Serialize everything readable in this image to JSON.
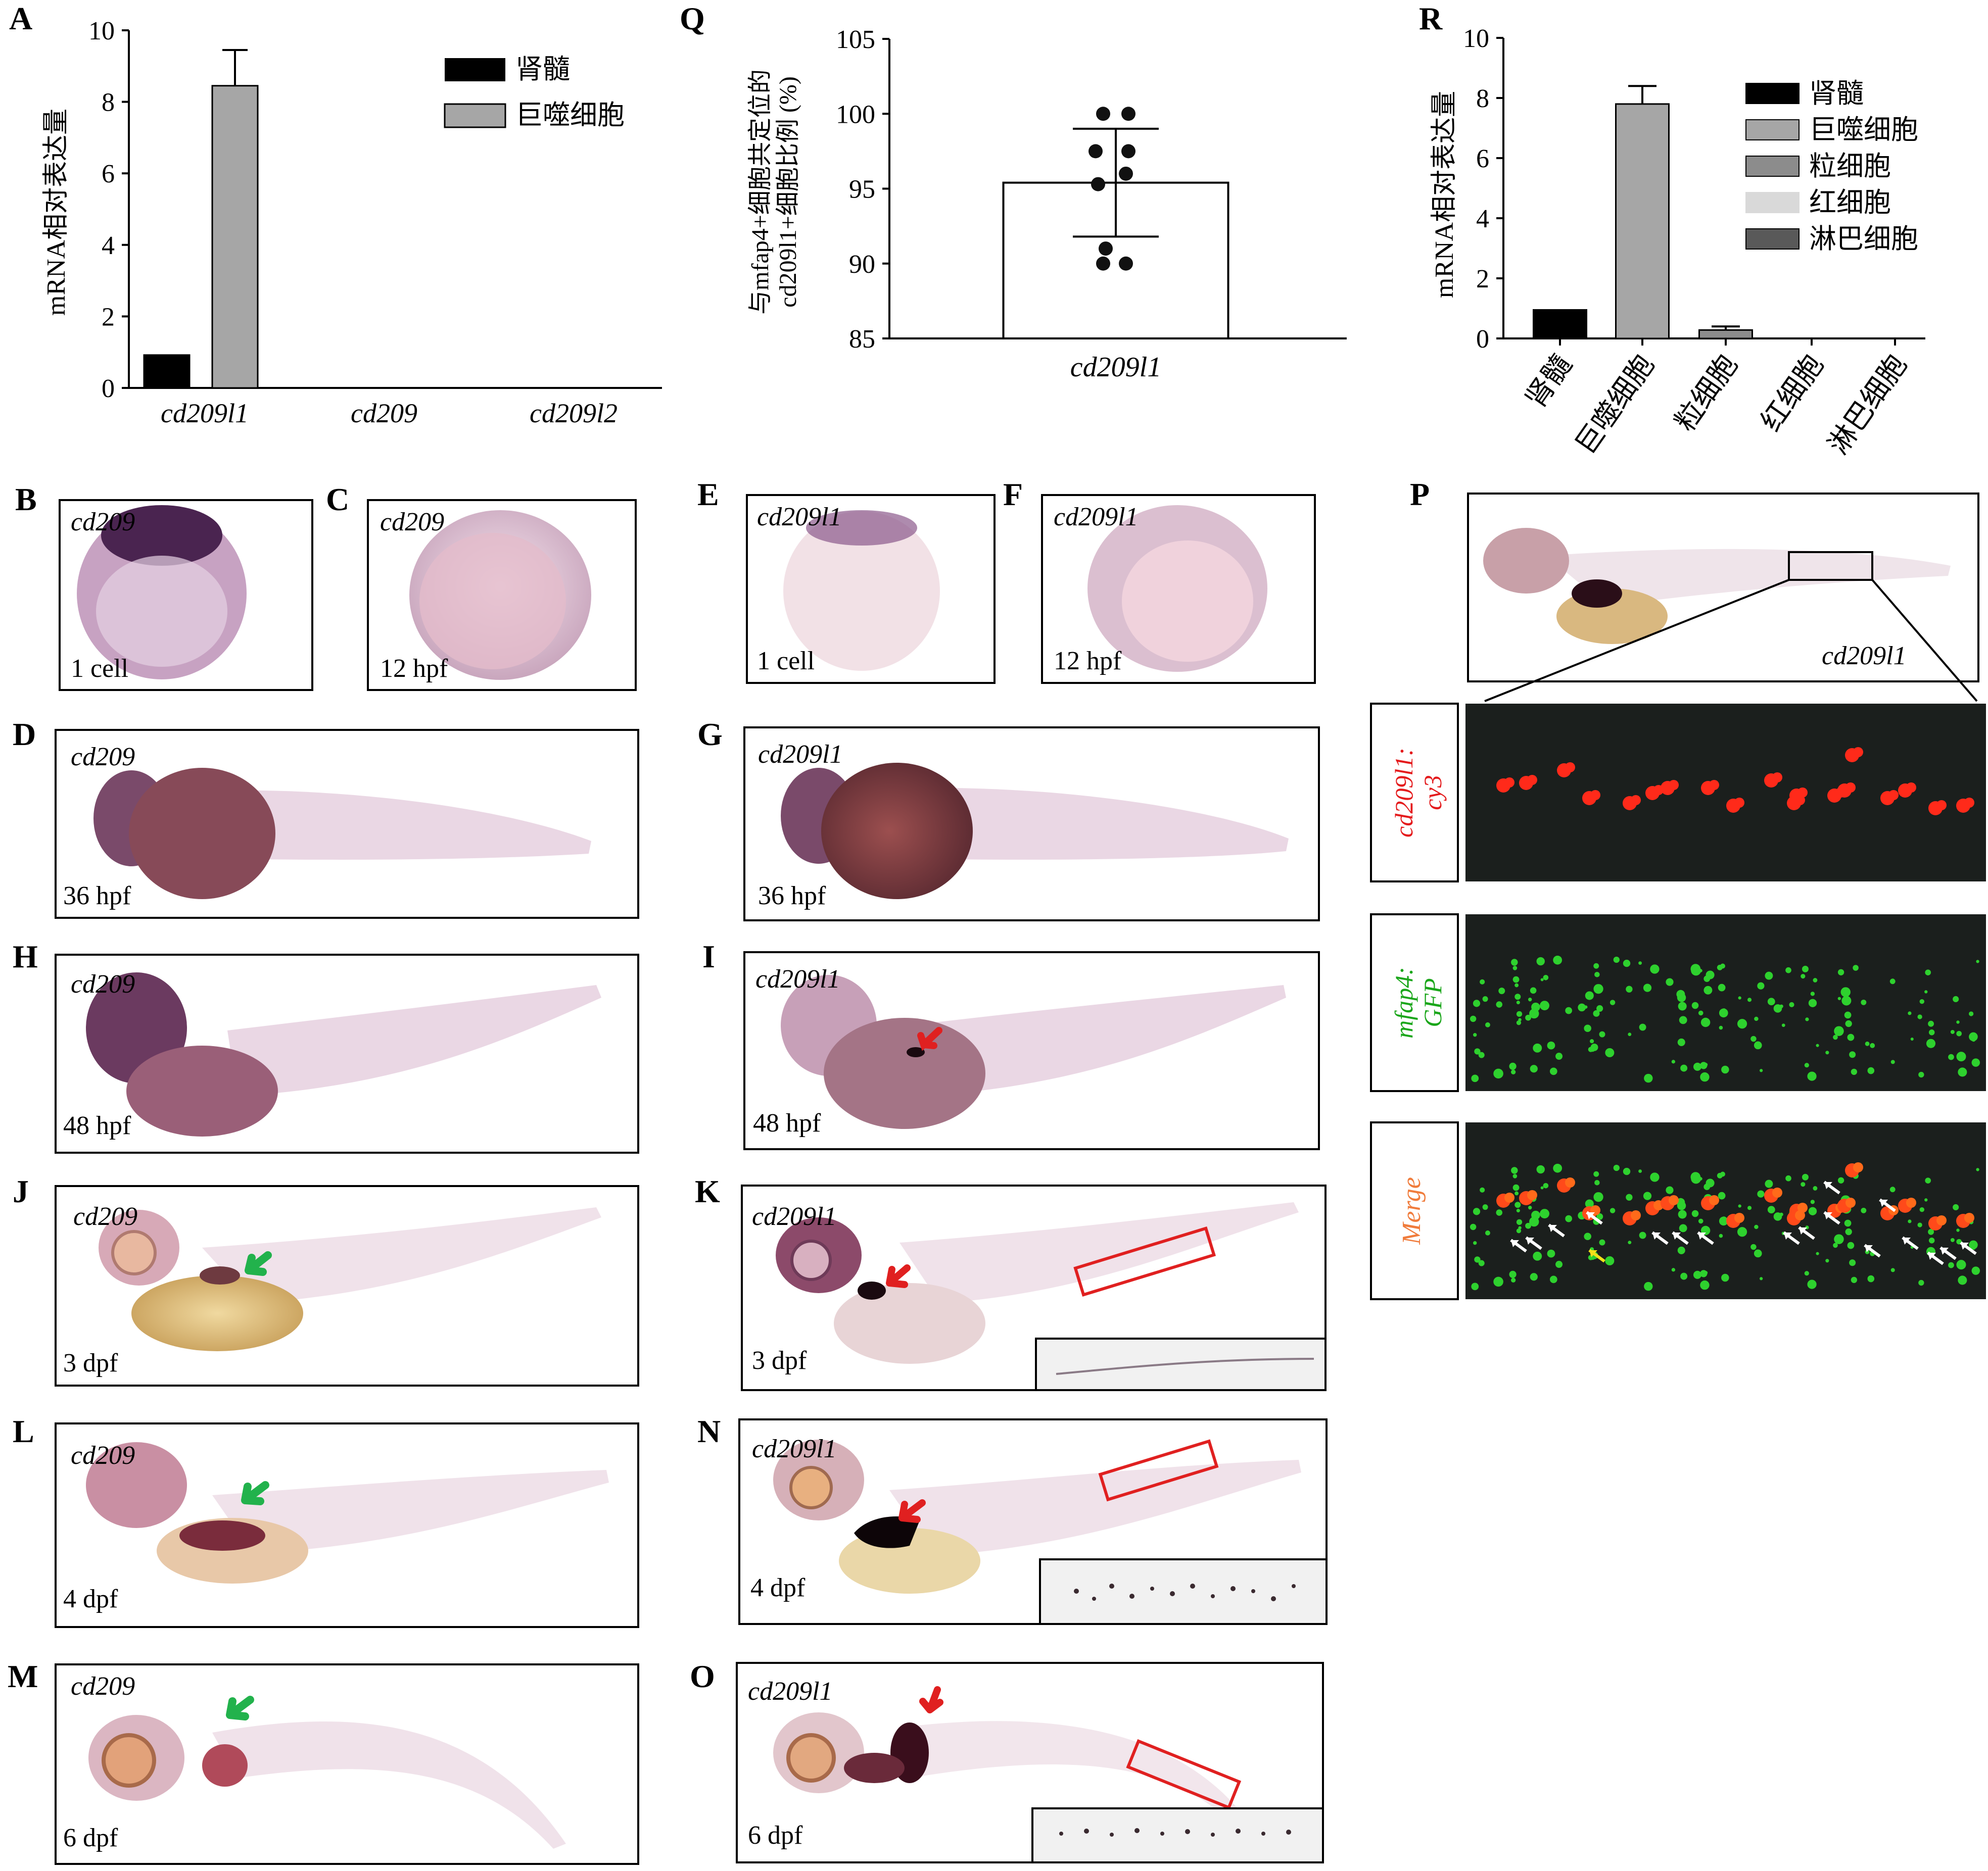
{
  "panels": {
    "A": "A",
    "Q": "Q",
    "R": "R",
    "B": "B",
    "C": "C",
    "D": "D",
    "E": "E",
    "F": "F",
    "G": "G",
    "H": "H",
    "I": "I",
    "J": "J",
    "K": "K",
    "L": "L",
    "M": "M",
    "N": "N",
    "O": "O",
    "P": "P"
  },
  "chart_data": [
    {
      "panel": "A",
      "type": "bar",
      "ylabel": "mRNA相对表达量",
      "ylim": [
        0,
        10
      ],
      "yticks": [
        "0",
        "2",
        "4",
        "6",
        "8",
        "10"
      ],
      "categories": [
        "cd209l1",
        "cd209",
        "cd209l2"
      ],
      "series": [
        {
          "name": "肾髓",
          "color": "#000000",
          "values": [
            0.92,
            0,
            0
          ]
        },
        {
          "name": "巨噬细胞",
          "color": "#a6a6a6",
          "values": [
            8.45,
            0,
            0
          ],
          "error": [
            1.0,
            0,
            0
          ]
        }
      ],
      "legend": "top-right"
    },
    {
      "panel": "Q",
      "type": "bar",
      "ylabel_lines": [
        "与mfap4+细胞共定位的",
        "cd209l1+细胞比例 (%)"
      ],
      "ylim": [
        85,
        105
      ],
      "yticks": [
        "85",
        "90",
        "95",
        "100",
        "105"
      ],
      "categories": [
        "cd209l1"
      ],
      "values": [
        95.4
      ],
      "error": [
        3.6
      ],
      "points": [
        100,
        100,
        97.5,
        97.5,
        96,
        95.3,
        91,
        90,
        90
      ]
    },
    {
      "panel": "R",
      "type": "bar",
      "ylabel": "mRNA相对表达量",
      "ylim": [
        0,
        10
      ],
      "yticks": [
        "0",
        "2",
        "4",
        "6",
        "8",
        "10"
      ],
      "categories": [
        "肾髓",
        "巨噬细胞",
        "粒细胞",
        "红细胞",
        "淋巴细胞"
      ],
      "values": [
        0.95,
        7.8,
        0.28,
        0,
        0
      ],
      "error": [
        0,
        0.6,
        0.12,
        0,
        0
      ],
      "colors": [
        "#000000",
        "#a6a6a6",
        "#8c8c8c",
        "#d9d9d9",
        "#595959"
      ],
      "legend": "top-right"
    }
  ],
  "ish_panels": [
    {
      "id": "B",
      "gene": "cd209",
      "stage": "1 cell"
    },
    {
      "id": "C",
      "gene": "cd209",
      "stage": "12 hpf"
    },
    {
      "id": "E",
      "gene": "cd209l1",
      "stage": "1 cell"
    },
    {
      "id": "F",
      "gene": "cd209l1",
      "stage": "12 hpf"
    },
    {
      "id": "D",
      "gene": "cd209",
      "stage": "36 hpf"
    },
    {
      "id": "G",
      "gene": "cd209l1",
      "stage": "36 hpf"
    },
    {
      "id": "H",
      "gene": "cd209",
      "stage": "48 hpf"
    },
    {
      "id": "I",
      "gene": "cd209l1",
      "stage": "48 hpf"
    },
    {
      "id": "J",
      "gene": "cd209",
      "stage": "3 dpf"
    },
    {
      "id": "K",
      "gene": "cd209l1",
      "stage": "3 dpf"
    },
    {
      "id": "L",
      "gene": "cd209",
      "stage": "4 dpf"
    },
    {
      "id": "N",
      "gene": "cd209l1",
      "stage": "4 dpf"
    },
    {
      "id": "M",
      "gene": "cd209",
      "stage": "6 dpf"
    },
    {
      "id": "O",
      "gene": "cd209l1",
      "stage": "6 dpf"
    },
    {
      "id": "P",
      "gene": "cd209l1",
      "stage": ""
    }
  ],
  "fluorescence": {
    "cy3_label_line1": "cd209l1:",
    "cy3_label_line2": "cy3",
    "gfp_label_line1": "mfap4:",
    "gfp_label_line2": "GFP",
    "merge_label": "Merge"
  },
  "colors": {
    "cy3": "#e41a1c",
    "gfp": "#1aa61a",
    "merge": "#f07c3c",
    "annotation_box": "#e02020",
    "arrow_green": "#22b24c",
    "arrow_red": "#e02020"
  }
}
